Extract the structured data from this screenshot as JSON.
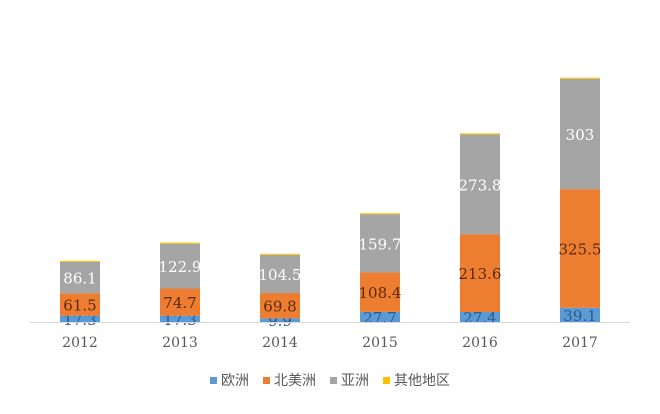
{
  "chart_data": {
    "type": "bar",
    "stacked": true,
    "title": "",
    "xlabel": "",
    "ylabel": "",
    "ylim": [
      0,
      700
    ],
    "grid": false,
    "legend_position": "bottom",
    "categories": [
      "2012",
      "2013",
      "2014",
      "2015",
      "2016",
      "2017"
    ],
    "series": [
      {
        "name": "欧洲",
        "color": "#5B9BD5",
        "label_color": "#2E5A8A",
        "values": [
          17.3,
          17.3,
          9.9,
          27.7,
          27.4,
          39.1
        ]
      },
      {
        "name": "北美洲",
        "color": "#ED7D31",
        "label_color": "#5A2A0A",
        "values": [
          61.5,
          74.7,
          69.8,
          108.4,
          213.6,
          325.5
        ]
      },
      {
        "name": "亚洲",
        "color": "#A5A5A5",
        "label_color": "#FFFFFF",
        "values": [
          86.1,
          122.9,
          104.5,
          159.7,
          273.8,
          303
        ]
      },
      {
        "name": "其他地区",
        "color": "#FFC000",
        "label_color": "",
        "values": [
          3,
          3,
          3,
          3,
          3,
          3
        ]
      }
    ],
    "data_labels": [
      [
        "17.3",
        "17.3",
        "9.9",
        "27.7",
        "27.4",
        "39.1"
      ],
      [
        "61.5",
        "74.7",
        "69.8",
        "108.4",
        "213.6",
        "325.5"
      ],
      [
        "86.1",
        "122.9",
        "104.5",
        "159.7",
        "273.8",
        "303"
      ],
      null
    ]
  }
}
